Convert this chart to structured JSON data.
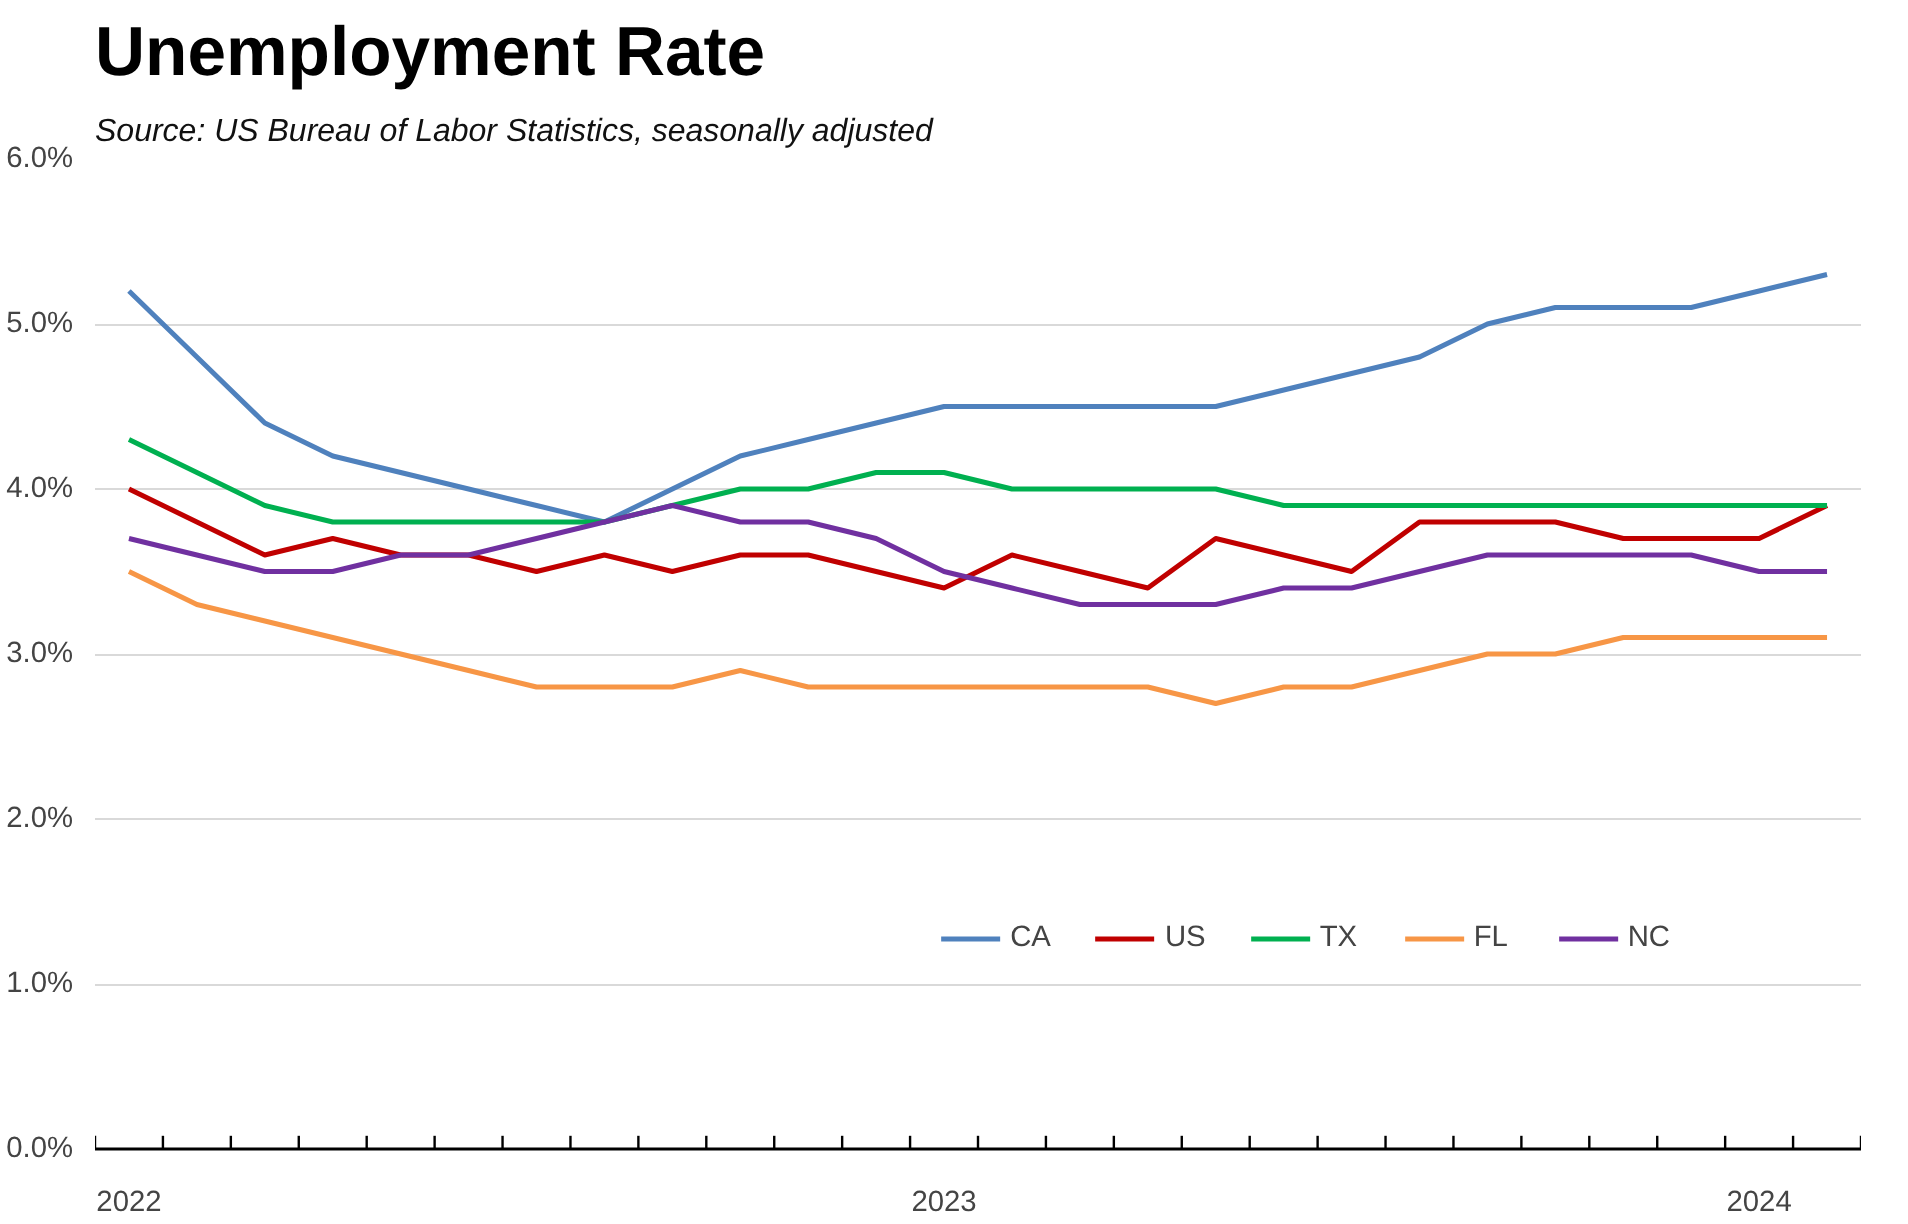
{
  "chart_data": {
    "type": "line",
    "title": "Unemployment Rate",
    "annotations": [
      "Source:  US Bureau of Labor Statistics, seasonally adjusted"
    ],
    "categories": [
      "2022",
      null,
      null,
      null,
      null,
      null,
      null,
      null,
      null,
      null,
      null,
      null,
      "2023",
      null,
      null,
      null,
      null,
      null,
      null,
      null,
      null,
      null,
      null,
      null,
      "2024",
      null
    ],
    "series": [
      {
        "name": "CA",
        "color": "#4f81bd",
        "values": [
          5.2,
          4.8,
          4.4,
          4.2,
          4.1,
          4.0,
          3.9,
          3.8,
          4.0,
          4.2,
          4.3,
          4.4,
          4.5,
          4.5,
          4.5,
          4.5,
          4.5,
          4.6,
          4.7,
          4.8,
          5.0,
          5.1,
          5.1,
          5.1,
          5.2,
          5.3
        ]
      },
      {
        "name": "US",
        "color": "#c00000",
        "values": [
          4.0,
          3.8,
          3.6,
          3.7,
          3.6,
          3.6,
          3.5,
          3.6,
          3.5,
          3.6,
          3.6,
          3.5,
          3.4,
          3.6,
          3.5,
          3.4,
          3.7,
          3.6,
          3.5,
          3.8,
          3.8,
          3.8,
          3.7,
          3.7,
          3.7,
          3.9
        ]
      },
      {
        "name": "TX",
        "color": "#00b050",
        "values": [
          4.3,
          4.1,
          3.9,
          3.8,
          3.8,
          3.8,
          3.8,
          3.8,
          3.9,
          4.0,
          4.0,
          4.1,
          4.1,
          4.0,
          4.0,
          4.0,
          4.0,
          3.9,
          3.9,
          3.9,
          3.9,
          3.9,
          3.9,
          3.9,
          3.9,
          3.9
        ]
      },
      {
        "name": "FL",
        "color": "#f79646",
        "values": [
          3.5,
          3.3,
          3.2,
          3.1,
          3.0,
          2.9,
          2.8,
          2.8,
          2.8,
          2.9,
          2.8,
          2.8,
          2.8,
          2.8,
          2.8,
          2.8,
          2.7,
          2.8,
          2.8,
          2.9,
          3.0,
          3.0,
          3.1,
          3.1,
          3.1,
          3.1
        ]
      },
      {
        "name": "NC",
        "color": "#7030a0",
        "values": [
          3.7,
          3.6,
          3.5,
          3.5,
          3.6,
          3.6,
          3.7,
          3.8,
          3.9,
          3.8,
          3.8,
          3.7,
          3.5,
          3.4,
          3.3,
          3.3,
          3.3,
          3.4,
          3.4,
          3.5,
          3.6,
          3.6,
          3.6,
          3.6,
          3.5,
          3.5
        ]
      }
    ],
    "ylim": [
      0,
      6
    ],
    "yticks": [
      {
        "value": 0,
        "label": "0.0%"
      },
      {
        "value": 1,
        "label": "1.0%"
      },
      {
        "value": 2,
        "label": "2.0%"
      },
      {
        "value": 3,
        "label": "3.0%"
      },
      {
        "value": 4,
        "label": "4.0%"
      },
      {
        "value": 5,
        "label": "5.0%"
      },
      {
        "value": 6,
        "label": "6.0%"
      }
    ],
    "grid": "y",
    "legend": "bottom right",
    "line_style": "solid"
  }
}
